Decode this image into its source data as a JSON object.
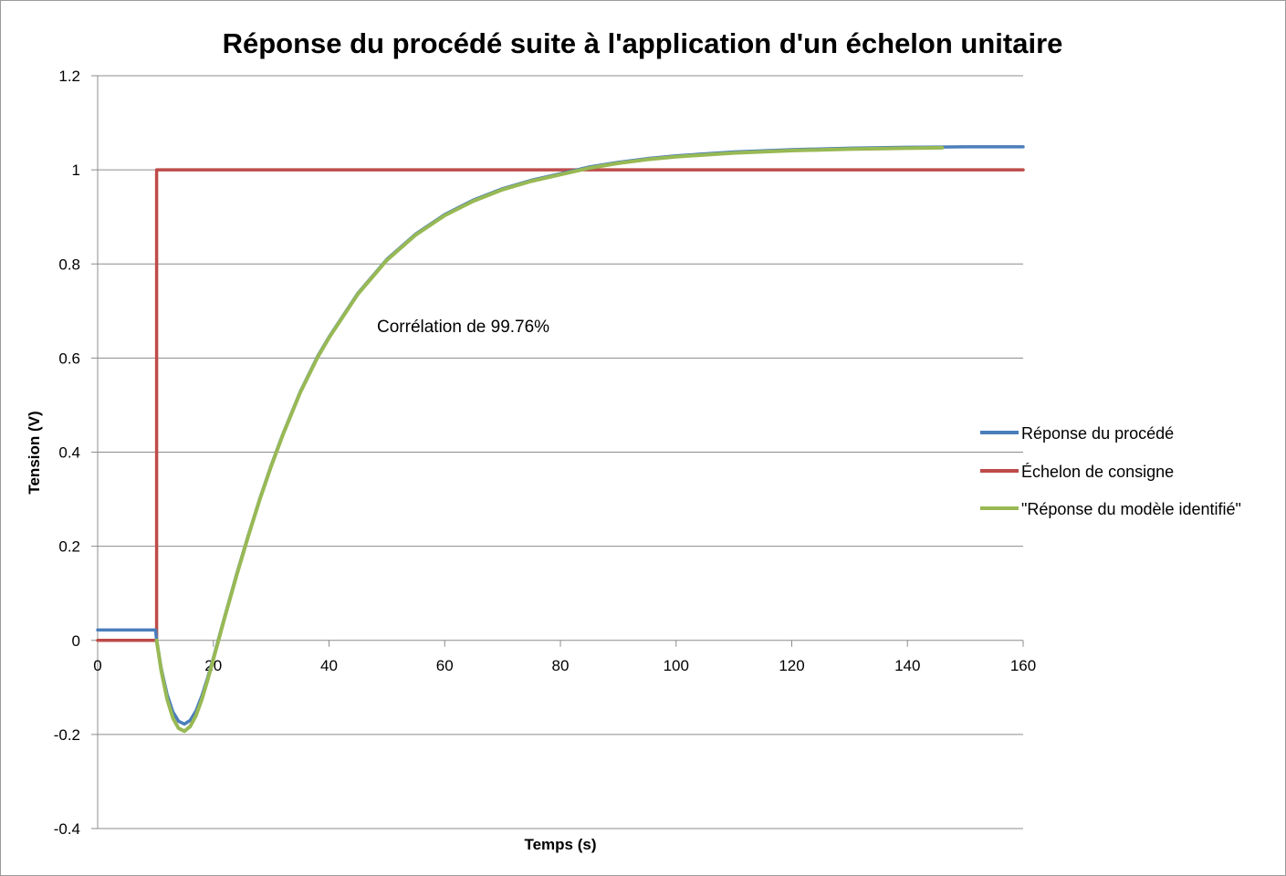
{
  "chart_data": {
    "type": "line",
    "title": "Réponse du procédé suite à l'application d'un échelon unitaire",
    "xlabel": "Temps (s)",
    "ylabel": "Tension (V)",
    "xlim": [
      0,
      160
    ],
    "ylim": [
      -0.4,
      1.2
    ],
    "x_ticks": [
      "0",
      "20",
      "40",
      "60",
      "80",
      "100",
      "120",
      "140",
      "160"
    ],
    "y_ticks": [
      "-0.4",
      "-0.2",
      "0",
      "0.2",
      "0.4",
      "0.6",
      "0.8",
      "1",
      "1.2"
    ],
    "grid": "horizontal",
    "legend_position": "right",
    "annotation": "Corrélation de 99.76%",
    "series": [
      {
        "name": "Réponse du procédé",
        "color": "#4a7ebb",
        "x": [
          0,
          10,
          10.2,
          11,
          12,
          13,
          14,
          15,
          16,
          17,
          18,
          19,
          20,
          21,
          22,
          24,
          26,
          28,
          30,
          32,
          35,
          38,
          40,
          45,
          50,
          55,
          60,
          65,
          70,
          75,
          80,
          85,
          90,
          95,
          100,
          110,
          120,
          130,
          140,
          150,
          160
        ],
        "y": [
          0.022,
          0.022,
          0.0,
          -0.06,
          -0.115,
          -0.152,
          -0.172,
          -0.178,
          -0.17,
          -0.15,
          -0.118,
          -0.08,
          -0.037,
          0.008,
          0.052,
          0.14,
          0.222,
          0.3,
          0.372,
          0.438,
          0.528,
          0.603,
          0.645,
          0.738,
          0.81,
          0.864,
          0.905,
          0.936,
          0.96,
          0.978,
          0.992,
          1.006,
          1.016,
          1.024,
          1.03,
          1.038,
          1.043,
          1.046,
          1.048,
          1.049,
          1.049
        ]
      },
      {
        "name": "Échelon de consigne",
        "color": "#be4b48",
        "x": [
          0,
          10.2,
          10.2,
          160
        ],
        "y": [
          0,
          0,
          1,
          1
        ]
      },
      {
        "name": "\"Réponse du modèle identifié\"",
        "color": "#98b954",
        "x": [
          10.2,
          11,
          12,
          13,
          14,
          15,
          16,
          17,
          18,
          19,
          20,
          21,
          22,
          24,
          26,
          28,
          30,
          32,
          35,
          38,
          40,
          45,
          50,
          55,
          60,
          65,
          70,
          75,
          80,
          85,
          90,
          95,
          100,
          110,
          120,
          130,
          140,
          146
        ],
        "y": [
          0.0,
          -0.065,
          -0.125,
          -0.165,
          -0.187,
          -0.193,
          -0.183,
          -0.16,
          -0.126,
          -0.085,
          -0.04,
          0.005,
          0.05,
          0.137,
          0.22,
          0.298,
          0.37,
          0.436,
          0.526,
          0.601,
          0.643,
          0.736,
          0.808,
          0.862,
          0.903,
          0.934,
          0.958,
          0.976,
          0.99,
          1.004,
          1.014,
          1.022,
          1.028,
          1.036,
          1.041,
          1.044,
          1.046,
          1.047
        ]
      }
    ]
  }
}
